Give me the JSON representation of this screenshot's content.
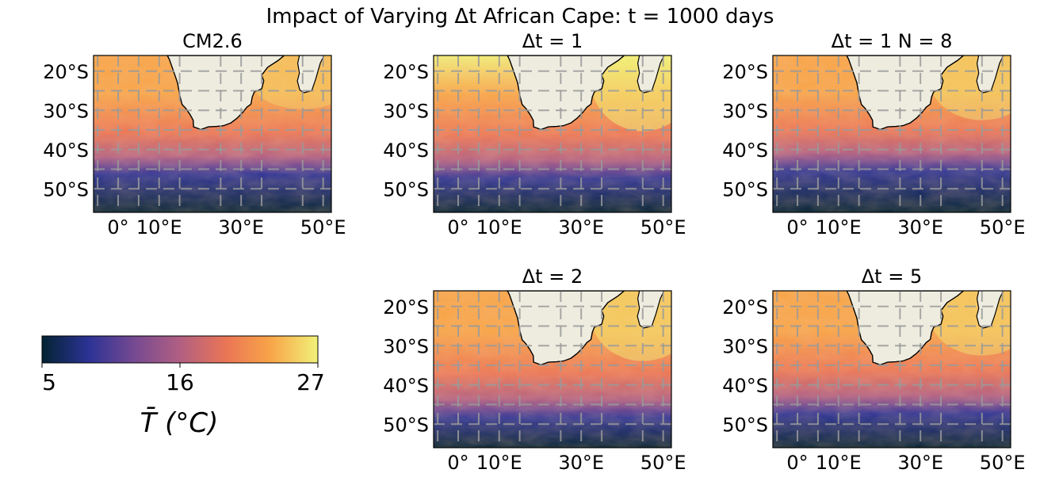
{
  "figure": {
    "title": "Impact of Varying Δt African Cape: t = 1000 days"
  },
  "chart_data": {
    "type": "heatmap",
    "variable": "mean temperature",
    "units": "°C",
    "xticks": [
      "0°",
      "10°E",
      "30°E",
      "50°E"
    ],
    "yticks": [
      "20°S",
      "30°S",
      "40°S",
      "50°S"
    ],
    "xlim": [
      -6,
      52
    ],
    "ylim": [
      -56,
      -16
    ],
    "land_color": "#eeecdf",
    "grid": true,
    "panels": [
      {
        "title": "CM2.6",
        "warm_extent": 0.55,
        "front_lat": -44
      },
      {
        "title": "Δt = 1",
        "warm_extent": 0.95,
        "front_lat": -45
      },
      {
        "title": "Δt = 1  N = 8",
        "warm_extent": 0.75,
        "front_lat": -43
      },
      {
        "title": "Δt = 2",
        "warm_extent": 0.85,
        "front_lat": -46
      },
      {
        "title": "Δt = 5",
        "warm_extent": 0.75,
        "front_lat": -45
      }
    ],
    "colorbar": {
      "label": "T̄ (°C)",
      "min": 5,
      "max": 27,
      "ticks": [
        "5",
        "16",
        "27"
      ],
      "colormap": "thermal",
      "colormap_stops": [
        "#042333",
        "#2c3395",
        "#744992",
        "#b15f82",
        "#eb7655",
        "#f8a548",
        "#f1f179"
      ]
    }
  }
}
